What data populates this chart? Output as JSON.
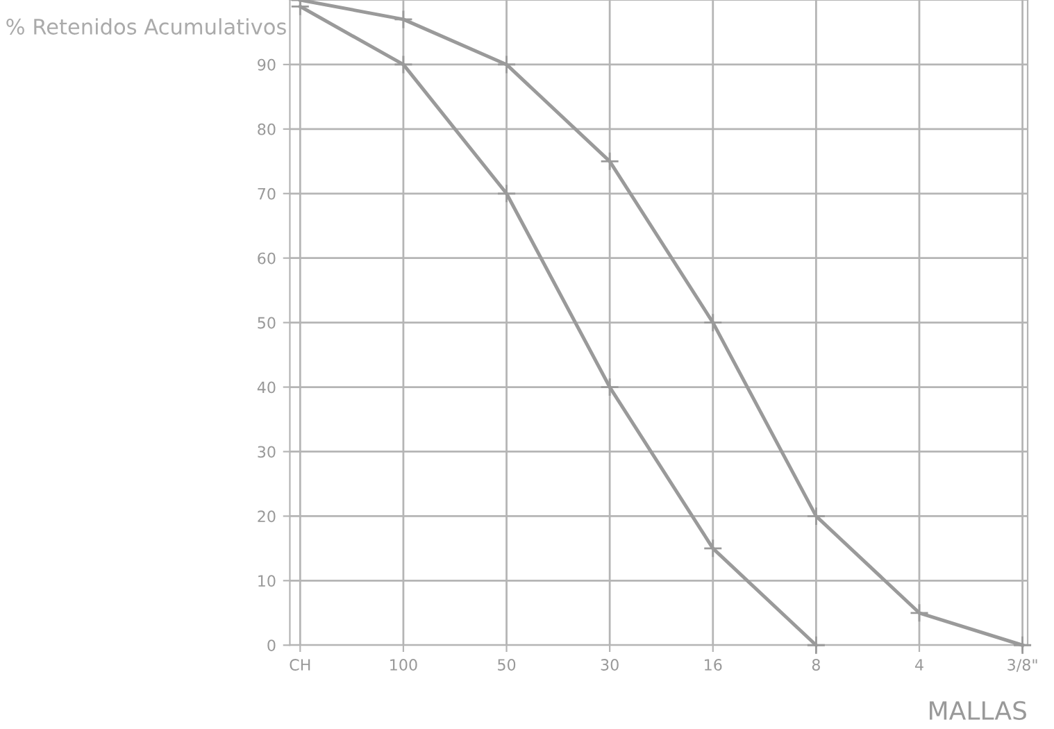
{
  "chart_data": {
    "type": "line",
    "ylabel": "% Retenidos Acumulativos",
    "xlabel": "MALLAS",
    "categories": [
      "CH",
      "100",
      "50",
      "30",
      "16",
      "8",
      "4",
      "3/8\""
    ],
    "series": [
      {
        "color": "#9a9a9a",
        "values": [
          99,
          90,
          70,
          40,
          15,
          0,
          null,
          null
        ]
      },
      {
        "color": "#9a9a9a",
        "values": [
          100,
          97,
          90,
          75,
          50,
          20,
          5,
          0
        ]
      }
    ],
    "ylim": [
      0,
      100
    ],
    "yticks": [
      0,
      10,
      20,
      30,
      40,
      50,
      60,
      70,
      80,
      90
    ],
    "grid": true,
    "marker": "cross",
    "line_style": "solid"
  }
}
